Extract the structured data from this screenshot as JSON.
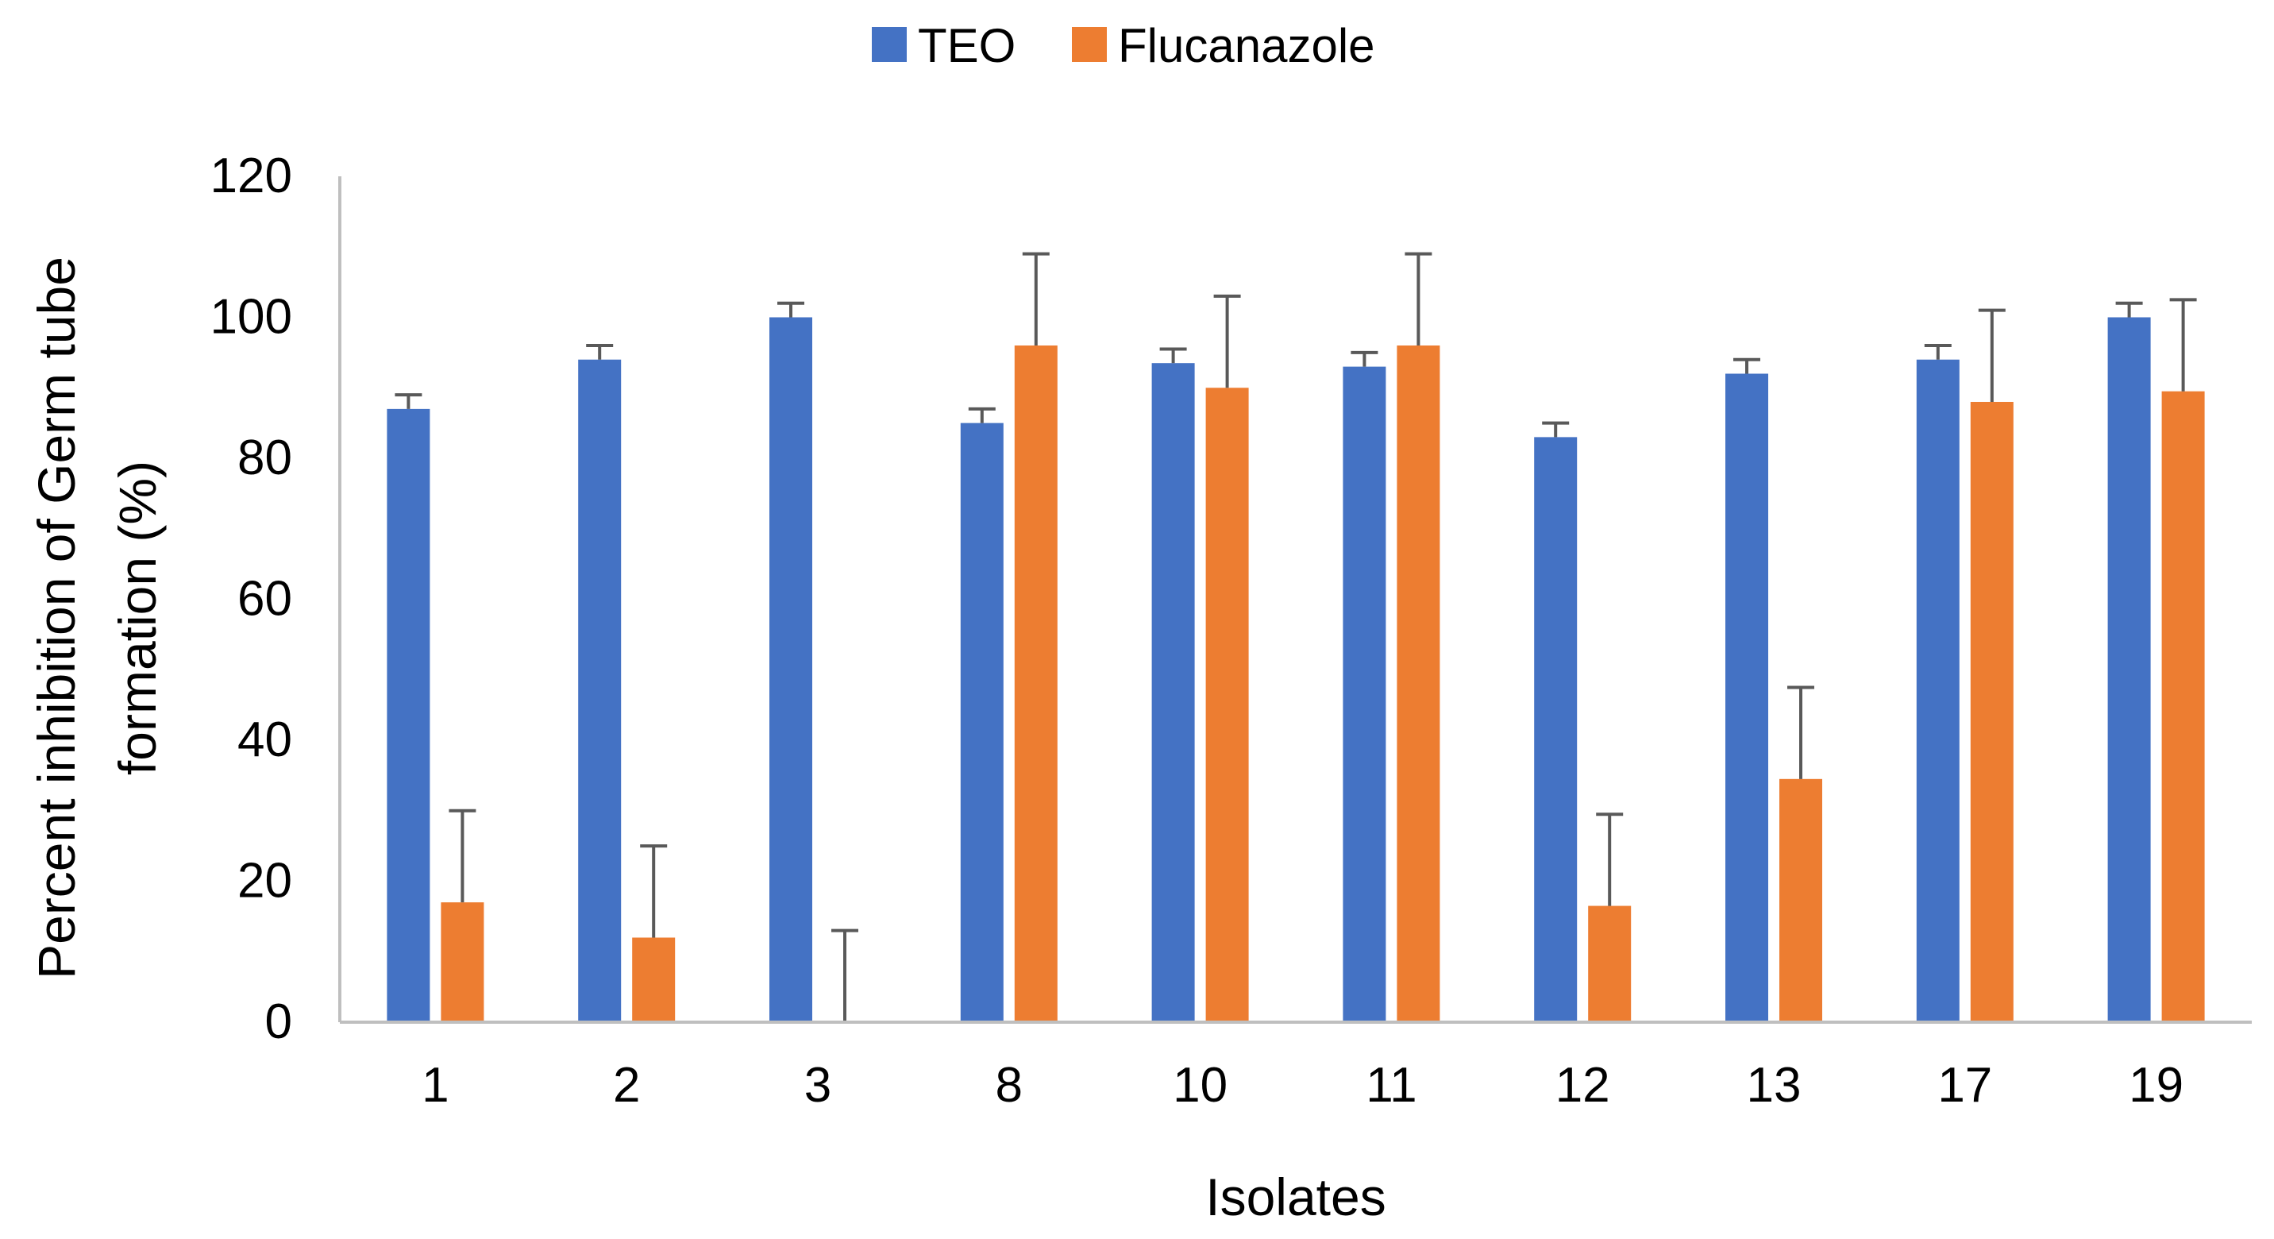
{
  "chart_data": {
    "type": "bar",
    "title": "",
    "xlabel": "Isolates",
    "ylabel_lines": [
      "Percent inhibition of Germ tube",
      "formation (%)"
    ],
    "ylim": [
      0,
      120
    ],
    "yticks": [
      0,
      20,
      40,
      60,
      80,
      100,
      120
    ],
    "categories": [
      "1",
      "2",
      "3",
      "8",
      "10",
      "11",
      "12",
      "13",
      "17",
      "19"
    ],
    "series": [
      {
        "name": "TEO",
        "color": "#4472C4",
        "values": [
          87,
          94,
          100,
          85,
          93.5,
          93,
          83,
          92,
          94,
          100
        ],
        "errors": [
          2,
          2,
          2,
          2,
          2,
          2,
          2,
          2,
          2,
          2
        ]
      },
      {
        "name": "Flucanazole",
        "color": "#ED7D31",
        "values": [
          17,
          12,
          0,
          96,
          90,
          96,
          16.5,
          34.5,
          88,
          89.5
        ],
        "errors": [
          13,
          13,
          13,
          13,
          13,
          13,
          13,
          13,
          13,
          13
        ]
      }
    ],
    "legend_position": "top-center",
    "grid": false
  }
}
